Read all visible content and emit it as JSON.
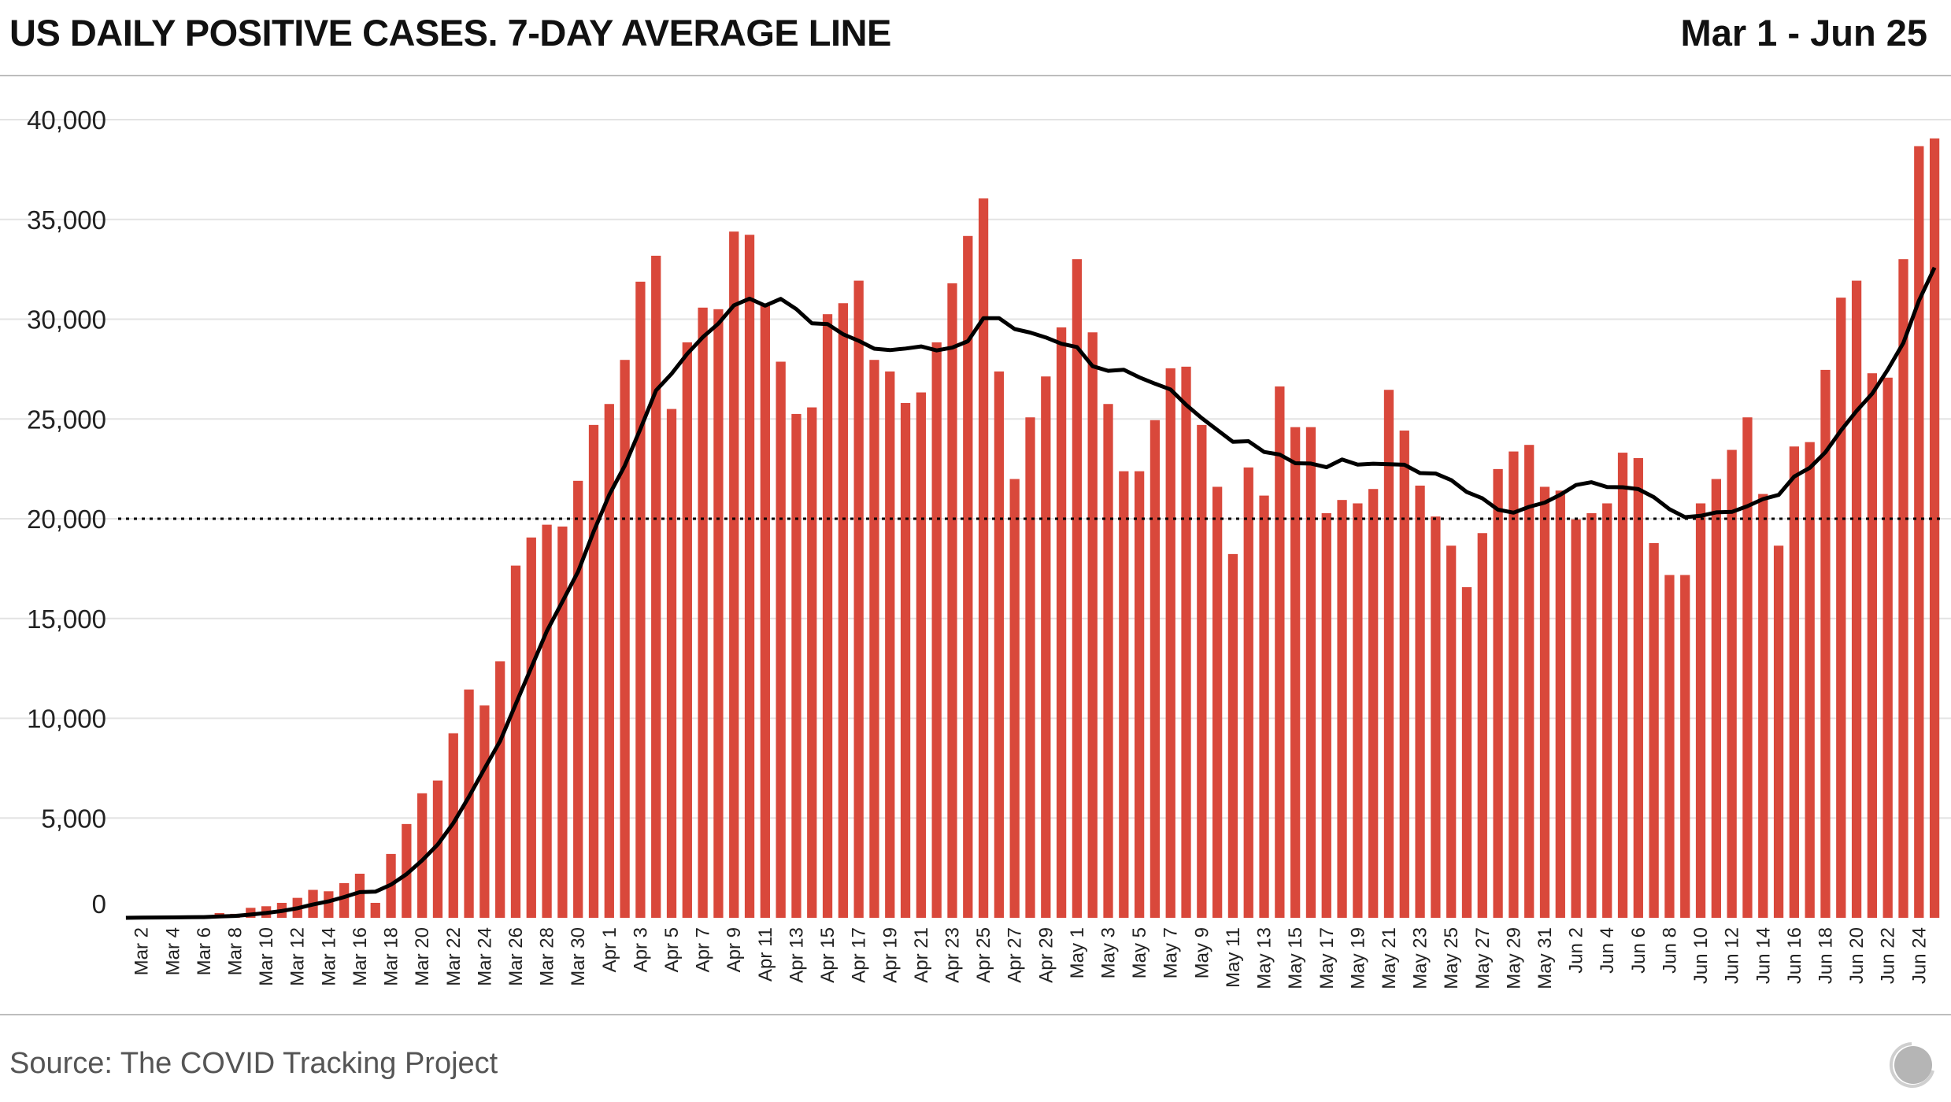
{
  "header": {
    "title": "US DAILY POSITIVE CASES. 7-DAY AVERAGE LINE",
    "date_range": "Mar 1 - Jun 25"
  },
  "footer": {
    "source": "Source: The COVID Tracking Project"
  },
  "colors": {
    "bar": "#d9483b",
    "line": "#000000",
    "grid": "#e3e3e3"
  },
  "chart_data": {
    "type": "bar",
    "title": "US DAILY POSITIVE CASES. 7-DAY AVERAGE LINE",
    "xlabel": "",
    "ylabel": "",
    "ylim": [
      0,
      40000
    ],
    "yticks": [
      0,
      5000,
      10000,
      15000,
      20000,
      25000,
      30000,
      35000,
      40000
    ],
    "ytick_labels": [
      "0",
      "5,000",
      "10,000",
      "15,000",
      "20,000",
      "25,000",
      "30,000",
      "35,000",
      "40,000"
    ],
    "reference_line": {
      "value": 20000,
      "style": "dotted"
    },
    "grid": true,
    "categories": [
      "Mar 1",
      "Mar 2",
      "Mar 3",
      "Mar 4",
      "Mar 5",
      "Mar 6",
      "Mar 7",
      "Mar 8",
      "Mar 9",
      "Mar 10",
      "Mar 11",
      "Mar 12",
      "Mar 13",
      "Mar 14",
      "Mar 15",
      "Mar 16",
      "Mar 17",
      "Mar 18",
      "Mar 19",
      "Mar 20",
      "Mar 21",
      "Mar 22",
      "Mar 23",
      "Mar 24",
      "Mar 25",
      "Mar 26",
      "Mar 27",
      "Mar 28",
      "Mar 29",
      "Mar 30",
      "Mar 31",
      "Apr 1",
      "Apr 2",
      "Apr 3",
      "Apr 4",
      "Apr 5",
      "Apr 6",
      "Apr 7",
      "Apr 8",
      "Apr 9",
      "Apr 10",
      "Apr 11",
      "Apr 12",
      "Apr 13",
      "Apr 14",
      "Apr 15",
      "Apr 16",
      "Apr 17",
      "Apr 18",
      "Apr 19",
      "Apr 20",
      "Apr 21",
      "Apr 22",
      "Apr 23",
      "Apr 24",
      "Apr 25",
      "Apr 26",
      "Apr 27",
      "Apr 28",
      "Apr 29",
      "Apr 30",
      "May 1",
      "May 2",
      "May 3",
      "May 4",
      "May 5",
      "May 6",
      "May 7",
      "May 8",
      "May 9",
      "May 10",
      "May 11",
      "May 12",
      "May 13",
      "May 14",
      "May 15",
      "May 16",
      "May 17",
      "May 18",
      "May 19",
      "May 20",
      "May 21",
      "May 22",
      "May 23",
      "May 24",
      "May 25",
      "May 26",
      "May 27",
      "May 28",
      "May 29",
      "May 30",
      "May 31",
      "Jun 1",
      "Jun 2",
      "Jun 3",
      "Jun 4",
      "Jun 5",
      "Jun 6",
      "Jun 7",
      "Jun 8",
      "Jun 9",
      "Jun 10",
      "Jun 11",
      "Jun 12",
      "Jun 13",
      "Jun 14",
      "Jun 15",
      "Jun 16",
      "Jun 17",
      "Jun 18",
      "Jun 19",
      "Jun 20",
      "Jun 21",
      "Jun 22",
      "Jun 23",
      "Jun 24",
      "Jun 25"
    ],
    "series": [
      {
        "name": "Daily positive cases",
        "type": "bar",
        "values": [
          0,
          20,
          30,
          30,
          60,
          80,
          240,
          200,
          500,
          580,
          750,
          1000,
          1400,
          1330,
          1740,
          2210,
          750,
          3200,
          4700,
          6240,
          6880,
          9250,
          11440,
          10640,
          12850,
          17650,
          19060,
          19700,
          19610,
          21900,
          24700,
          25750,
          27960,
          31880,
          33180,
          25500,
          28840,
          30580,
          30500,
          34390,
          34230,
          30720,
          27870,
          25250,
          25580,
          30250,
          30800,
          31930,
          27960,
          27380,
          25800,
          26330,
          28840,
          31800,
          34170,
          36050,
          27380,
          21990,
          25080,
          27130,
          29590,
          33010,
          29340,
          25750,
          22380,
          22380,
          24940,
          27540,
          27620,
          24700,
          21600,
          18230,
          22570,
          21160,
          26630,
          24590,
          24590,
          20280,
          20940,
          20770,
          21490,
          26460,
          24420,
          21660,
          20110,
          18650,
          16570,
          19280,
          22490,
          23370,
          23700,
          21600,
          21410,
          19970,
          20280,
          20770,
          23310,
          23040,
          18780,
          17180,
          17180,
          20770,
          21990,
          23450,
          25080,
          21240,
          18650,
          23620,
          23840,
          27460,
          31080,
          31930,
          27290,
          27070,
          33010,
          38670,
          39060
        ]
      },
      {
        "name": "7-day average",
        "type": "line",
        "window": 7
      }
    ]
  }
}
